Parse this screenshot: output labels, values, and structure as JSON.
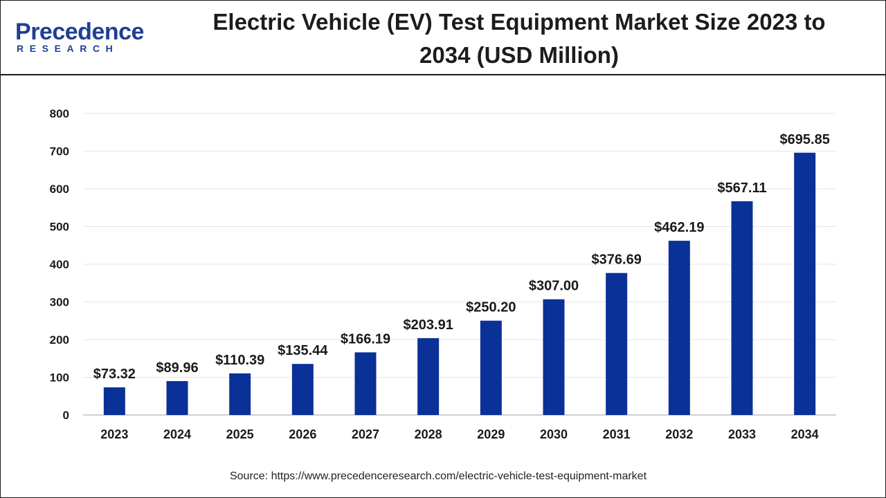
{
  "header": {
    "logo_word": "recedence",
    "logo_initial": "P",
    "logo_sub": "RESEARCH",
    "title_line1": "Electric Vehicle (EV) Test Equipment Market Size 2023 to",
    "title_line2": "2034 (USD Million)"
  },
  "chart_data": {
    "type": "bar",
    "title": "Electric Vehicle (EV) Test Equipment Market Size 2023 to 2034 (USD Million)",
    "categories": [
      "2023",
      "2024",
      "2025",
      "2026",
      "2027",
      "2028",
      "2029",
      "2030",
      "2031",
      "2032",
      "2033",
      "2034"
    ],
    "values": [
      73.32,
      89.96,
      110.39,
      135.44,
      166.19,
      203.91,
      250.2,
      307.0,
      376.69,
      462.19,
      567.11,
      695.85
    ],
    "data_labels": [
      "$73.32",
      "$89.96",
      "$110.39",
      "$135.44",
      "$166.19",
      "$203.91",
      "$250.20",
      "$307.00",
      "$376.69",
      "$462.19",
      "$567.11",
      "$695.85"
    ],
    "ylim": [
      0,
      800
    ],
    "yticks": [
      0,
      100,
      200,
      300,
      400,
      500,
      600,
      700,
      800
    ],
    "grid": true,
    "bar_color": "#0a3197"
  },
  "footer": {
    "source": "Source: https://www.precedenceresearch.com/electric-vehicle-test-equipment-market"
  }
}
